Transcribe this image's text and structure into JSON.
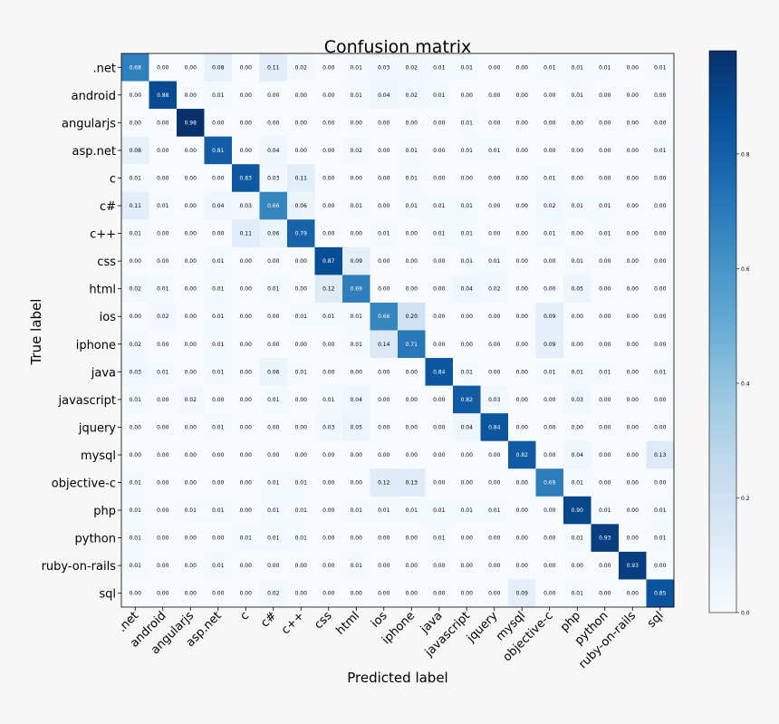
{
  "chart_data": {
    "type": "heatmap",
    "title": "Confusion matrix",
    "xlabel": "Predicted label",
    "ylabel": "True label",
    "labels": [
      ".net",
      "android",
      "angularjs",
      "asp.net",
      "c",
      "c#",
      "c++",
      "css",
      "html",
      "ios",
      "iphone",
      "java",
      "javascript",
      "jquery",
      "mysql",
      "objective-c",
      "php",
      "python",
      "ruby-on-rails",
      "sql"
    ],
    "matrix": [
      [
        0.68,
        0.0,
        0.0,
        0.08,
        0.0,
        0.11,
        0.02,
        0.0,
        0.01,
        0.03,
        0.02,
        0.01,
        0.01,
        0.0,
        0.0,
        0.01,
        0.01,
        0.01,
        0.0,
        0.01
      ],
      [
        0.0,
        0.88,
        0.0,
        0.01,
        0.0,
        0.0,
        0.0,
        0.0,
        0.01,
        0.04,
        0.02,
        0.01,
        0.0,
        0.0,
        0.0,
        0.0,
        0.01,
        0.0,
        0.0,
        0.0
      ],
      [
        0.0,
        0.0,
        0.98,
        0.0,
        0.0,
        0.0,
        0.0,
        0.0,
        0.0,
        0.0,
        0.0,
        0.0,
        0.01,
        0.0,
        0.0,
        0.0,
        0.0,
        0.0,
        0.0,
        0.0
      ],
      [
        0.08,
        0.0,
        0.0,
        0.81,
        0.0,
        0.04,
        0.0,
        0.0,
        0.02,
        0.0,
        0.01,
        0.0,
        0.01,
        0.01,
        0.0,
        0.0,
        0.0,
        0.0,
        0.0,
        0.01
      ],
      [
        0.01,
        0.0,
        0.0,
        0.0,
        0.83,
        0.03,
        0.11,
        0.0,
        0.0,
        0.0,
        0.01,
        0.0,
        0.0,
        0.0,
        0.0,
        0.01,
        0.0,
        0.0,
        0.0,
        0.0
      ],
      [
        0.11,
        0.01,
        0.0,
        0.04,
        0.03,
        0.66,
        0.06,
        0.0,
        0.01,
        0.0,
        0.01,
        0.01,
        0.01,
        0.0,
        0.0,
        0.02,
        0.01,
        0.01,
        0.0,
        0.0
      ],
      [
        0.01,
        0.0,
        0.0,
        0.0,
        0.11,
        0.06,
        0.79,
        0.0,
        0.0,
        0.01,
        0.0,
        0.01,
        0.01,
        0.0,
        0.0,
        0.01,
        0.0,
        0.01,
        0.0,
        0.0
      ],
      [
        0.0,
        0.0,
        0.0,
        0.01,
        0.0,
        0.0,
        0.0,
        0.87,
        0.09,
        0.0,
        0.0,
        0.0,
        0.01,
        0.01,
        0.0,
        0.0,
        0.01,
        0.0,
        0.0,
        0.0
      ],
      [
        0.02,
        0.01,
        0.0,
        0.01,
        0.0,
        0.01,
        0.0,
        0.12,
        0.69,
        0.0,
        0.0,
        0.0,
        0.04,
        0.02,
        0.0,
        0.0,
        0.05,
        0.0,
        0.0,
        0.0
      ],
      [
        0.0,
        0.02,
        0.0,
        0.01,
        0.0,
        0.0,
        0.01,
        0.01,
        0.01,
        0.66,
        0.2,
        0.0,
        0.0,
        0.0,
        0.0,
        0.09,
        0.0,
        0.0,
        0.0,
        0.0
      ],
      [
        0.02,
        0.0,
        0.0,
        0.01,
        0.0,
        0.0,
        0.0,
        0.0,
        0.01,
        0.14,
        0.71,
        0.0,
        0.0,
        0.0,
        0.0,
        0.09,
        0.0,
        0.0,
        0.0,
        0.0
      ],
      [
        0.03,
        0.01,
        0.0,
        0.01,
        0.0,
        0.06,
        0.01,
        0.0,
        0.0,
        0.0,
        0.0,
        0.84,
        0.01,
        0.0,
        0.0,
        0.01,
        0.01,
        0.01,
        0.0,
        0.01
      ],
      [
        0.01,
        0.0,
        0.02,
        0.0,
        0.0,
        0.01,
        0.0,
        0.01,
        0.04,
        0.0,
        0.0,
        0.0,
        0.82,
        0.03,
        0.0,
        0.0,
        0.03,
        0.0,
        0.0,
        0.0
      ],
      [
        0.0,
        0.0,
        0.0,
        0.01,
        0.0,
        0.0,
        0.0,
        0.03,
        0.05,
        0.0,
        0.0,
        0.0,
        0.04,
        0.84,
        0.0,
        0.0,
        0.0,
        0.0,
        0.0,
        0.0
      ],
      [
        0.0,
        0.0,
        0.0,
        0.0,
        0.0,
        0.0,
        0.0,
        0.0,
        0.0,
        0.0,
        0.0,
        0.0,
        0.0,
        0.0,
        0.82,
        0.0,
        0.04,
        0.0,
        0.0,
        0.13
      ],
      [
        0.01,
        0.0,
        0.0,
        0.0,
        0.0,
        0.01,
        0.01,
        0.0,
        0.0,
        0.12,
        0.13,
        0.0,
        0.0,
        0.0,
        0.0,
        0.69,
        0.01,
        0.0,
        0.0,
        0.0
      ],
      [
        0.01,
        0.0,
        0.01,
        0.01,
        0.0,
        0.01,
        0.01,
        0.0,
        0.01,
        0.01,
        0.01,
        0.01,
        0.01,
        0.01,
        0.0,
        0.0,
        0.9,
        0.01,
        0.0,
        0.01
      ],
      [
        0.01,
        0.0,
        0.0,
        0.0,
        0.01,
        0.01,
        0.01,
        0.0,
        0.0,
        0.0,
        0.0,
        0.01,
        0.0,
        0.0,
        0.0,
        0.0,
        0.01,
        0.93,
        0.0,
        0.01
      ],
      [
        0.01,
        0.0,
        0.0,
        0.01,
        0.0,
        0.0,
        0.0,
        0.0,
        0.01,
        0.0,
        0.0,
        0.0,
        0.0,
        0.0,
        0.0,
        0.0,
        0.0,
        0.0,
        0.93,
        0.0
      ],
      [
        0.0,
        0.0,
        0.0,
        0.0,
        0.0,
        0.02,
        0.0,
        0.0,
        0.0,
        0.0,
        0.0,
        0.0,
        0.0,
        0.0,
        0.09,
        0.0,
        0.01,
        0.0,
        0.0,
        0.85
      ]
    ],
    "colorbar": {
      "ticks": [
        "0.0",
        "0.2",
        "0.4",
        "0.6",
        "0.8"
      ],
      "min": 0.0,
      "max": 0.98
    },
    "colormap": [
      "#f7fbff",
      "#deebf7",
      "#c6dbef",
      "#9ecae1",
      "#6baed6",
      "#4292c6",
      "#2171b5",
      "#08519c",
      "#08306b"
    ]
  }
}
